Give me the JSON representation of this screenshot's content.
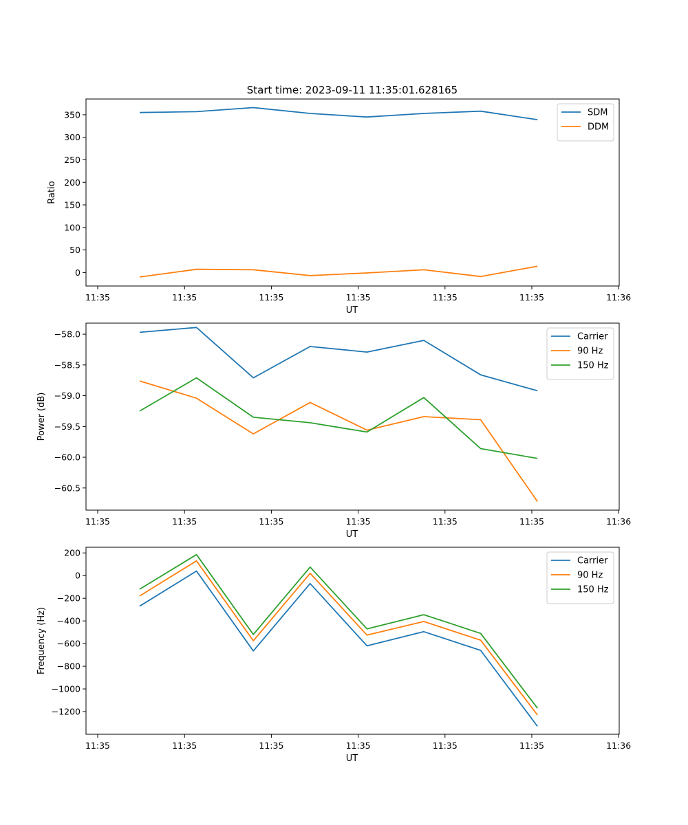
{
  "figure_title": "Start time: 2023-09-11 11:35:01.628165",
  "chart_data": [
    {
      "type": "line",
      "title": "Start time: 2023-09-11 11:35:01.628165",
      "xlabel": "UT",
      "ylabel": "Ratio",
      "x_tick_labels": [
        "11:35",
        "11:35",
        "11:35",
        "11:35",
        "11:35",
        "11:35",
        "11:36"
      ],
      "x_index": [
        1,
        2,
        3,
        4,
        5,
        6,
        7,
        8
      ],
      "xlim": [
        0.8,
        9.2
      ],
      "ylim": [
        -30,
        385
      ],
      "y_ticks": [
        0,
        50,
        100,
        150,
        200,
        250,
        300,
        350
      ],
      "series": [
        {
          "name": "SDM",
          "color": "#1f77b4",
          "values": [
            355,
            357,
            366,
            353,
            345,
            353,
            358,
            339
          ]
        },
        {
          "name": "DDM",
          "color": "#ff7f0e",
          "values": [
            -10,
            7,
            6,
            -7,
            -1,
            6,
            -9,
            14
          ]
        }
      ]
    },
    {
      "type": "line",
      "title": "",
      "xlabel": "UT",
      "ylabel": "Power (dB)",
      "x_tick_labels": [
        "11:35",
        "11:35",
        "11:35",
        "11:35",
        "11:35",
        "11:35",
        "11:36"
      ],
      "x_index": [
        1,
        2,
        3,
        4,
        5,
        6,
        7,
        8
      ],
      "xlim": [
        0.8,
        9.2
      ],
      "ylim": [
        -60.86,
        -57.82
      ],
      "y_ticks": [
        -58.0,
        -58.5,
        -59.0,
        -59.5,
        -60.0,
        -60.5
      ],
      "y_tick_labels": [
        "−58.0",
        "−58.5",
        "−59.0",
        "−59.5",
        "−60.0",
        "−60.5"
      ],
      "series": [
        {
          "name": "Carrier",
          "color": "#1f77b4",
          "values": [
            -57.97,
            -57.89,
            -58.71,
            -58.2,
            -58.29,
            -58.1,
            -58.66,
            -58.92
          ]
        },
        {
          "name": "90 Hz",
          "color": "#ff7f0e",
          "values": [
            -58.76,
            -59.04,
            -59.62,
            -59.11,
            -59.56,
            -59.34,
            -59.39,
            -60.72
          ]
        },
        {
          "name": "150 Hz",
          "color": "#2ca02c",
          "values": [
            -59.25,
            -58.71,
            -59.35,
            -59.44,
            -59.59,
            -59.03,
            -59.86,
            -60.02
          ]
        }
      ]
    },
    {
      "type": "line",
      "title": "",
      "xlabel": "UT",
      "ylabel": "Frequency (Hz)",
      "x_tick_labels": [
        "11:35",
        "11:35",
        "11:35",
        "11:35",
        "11:35",
        "11:35",
        "11:36"
      ],
      "x_index": [
        1,
        2,
        3,
        4,
        5,
        6,
        7,
        8
      ],
      "xlim": [
        0.8,
        9.2
      ],
      "ylim": [
        -1400,
        250
      ],
      "y_ticks": [
        200,
        0,
        -200,
        -400,
        -600,
        -800,
        -1000,
        -1200
      ],
      "y_tick_labels": [
        "200",
        "0",
        "−200",
        "−400",
        "−600",
        "−800",
        "−1000",
        "−1200"
      ],
      "series": [
        {
          "name": "Carrier",
          "color": "#1f77b4",
          "values": [
            -270,
            40,
            -665,
            -70,
            -620,
            -495,
            -660,
            -1330
          ]
        },
        {
          "name": "90 Hz",
          "color": "#ff7f0e",
          "values": [
            -180,
            130,
            -575,
            20,
            -525,
            -405,
            -570,
            -1230
          ]
        },
        {
          "name": "150 Hz",
          "color": "#2ca02c",
          "values": [
            -120,
            185,
            -520,
            75,
            -470,
            -345,
            -510,
            -1170
          ]
        }
      ]
    }
  ]
}
